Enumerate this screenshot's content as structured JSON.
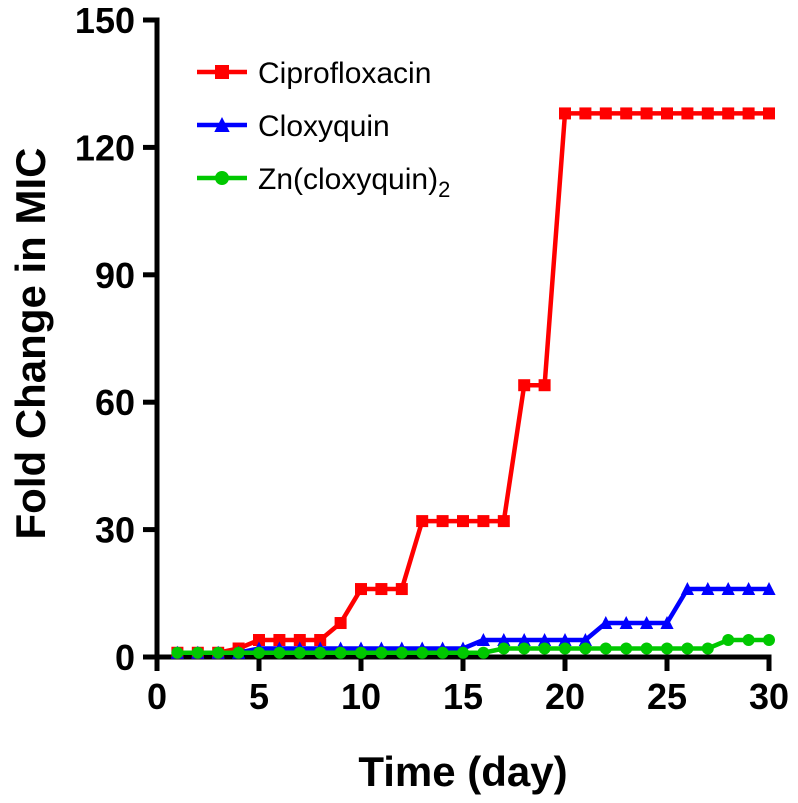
{
  "chart_data": {
    "type": "line",
    "xlabel": "Time (day)",
    "ylabel": "Fold Change in MIC",
    "xlim": [
      0,
      30
    ],
    "ylim": [
      0,
      150
    ],
    "xticks": [
      0,
      5,
      10,
      15,
      20,
      25,
      30
    ],
    "yticks": [
      0,
      30,
      60,
      90,
      120,
      150
    ],
    "grid": false,
    "legend_position": "top-left",
    "x": [
      1,
      2,
      3,
      4,
      5,
      6,
      7,
      8,
      9,
      10,
      11,
      12,
      13,
      14,
      15,
      16,
      17,
      18,
      19,
      20,
      21,
      22,
      23,
      24,
      25,
      26,
      27,
      28,
      29,
      30
    ],
    "series": [
      {
        "name": "Ciprofloxacin",
        "name_main": "Ciprofloxacin",
        "name_sub": "",
        "color": "#ff0000",
        "marker": "square",
        "values": [
          1,
          1,
          1,
          2,
          4,
          4,
          4,
          4,
          8,
          16,
          16,
          16,
          32,
          32,
          32,
          32,
          32,
          64,
          64,
          128,
          128,
          128,
          128,
          128,
          128,
          128,
          128,
          128,
          128,
          128
        ]
      },
      {
        "name": "Cloxyquin",
        "name_main": "Cloxyquin",
        "name_sub": "",
        "color": "#0000ff",
        "marker": "triangle",
        "values": [
          1,
          1,
          1,
          1,
          2,
          2,
          2,
          2,
          2,
          2,
          2,
          2,
          2,
          2,
          2,
          4,
          4,
          4,
          4,
          4,
          4,
          8,
          8,
          8,
          8,
          16,
          16,
          16,
          16,
          16
        ]
      },
      {
        "name": "Zn(cloxyquin)2",
        "name_main": "Zn(cloxyquin)",
        "name_sub": "2",
        "color": "#00c800",
        "marker": "circle",
        "values": [
          1,
          1,
          1,
          1,
          1,
          1,
          1,
          1,
          1,
          1,
          1,
          1,
          1,
          1,
          1,
          1,
          2,
          2,
          2,
          2,
          2,
          2,
          2,
          2,
          2,
          2,
          2,
          4,
          4,
          4
        ]
      }
    ]
  }
}
